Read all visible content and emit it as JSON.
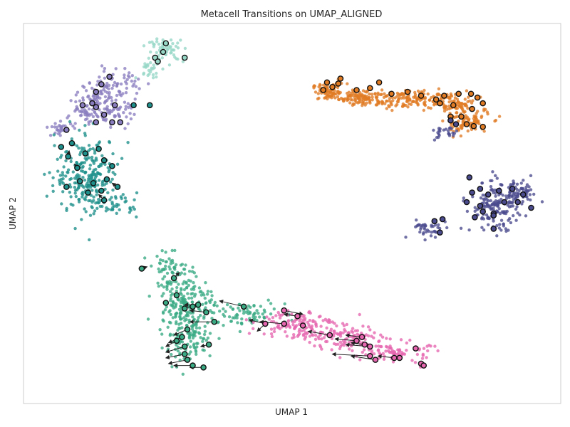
{
  "chart_data": {
    "type": "scatter",
    "title": "Metacell Transitions on UMAP_ALIGNED",
    "xlabel": "UMAP 1",
    "ylabel": "UMAP 2",
    "xlim": [
      0,
      100
    ],
    "ylim": [
      0,
      100
    ],
    "grid": false,
    "legend": "none",
    "ticks": "none",
    "series": [
      {
        "color": "#E07B24",
        "cell_clusters": [
          {
            "cx": 57,
            "cy": 82,
            "sx": 1.6,
            "sy": 1.1,
            "n": 90
          },
          {
            "cx": 63.5,
            "cy": 80.5,
            "sx": 2.3,
            "sy": 1.0,
            "n": 110
          },
          {
            "cx": 71.5,
            "cy": 80,
            "sx": 2.8,
            "sy": 1.2,
            "n": 120
          },
          {
            "cx": 80,
            "cy": 79,
            "sx": 2.2,
            "sy": 1.4,
            "n": 90
          },
          {
            "cx": 82.5,
            "cy": 74,
            "sx": 2.1,
            "sy": 1.6,
            "n": 90
          }
        ],
        "metacells": [
          [
            56.5,
            84.5
          ],
          [
            59,
            85.5
          ],
          [
            57.5,
            83.3
          ],
          [
            55.8,
            82.5
          ],
          [
            58.6,
            84.2
          ],
          [
            62,
            82.5
          ],
          [
            66.2,
            84.5
          ],
          [
            64.5,
            83
          ],
          [
            68.5,
            81.5
          ],
          [
            71.5,
            82
          ],
          [
            74,
            81
          ],
          [
            76.8,
            80
          ],
          [
            78.3,
            81
          ],
          [
            81,
            81.5
          ],
          [
            77.5,
            79
          ],
          [
            80,
            78.5
          ],
          [
            83.3,
            81.5
          ],
          [
            84.5,
            80.5
          ],
          [
            85.5,
            79
          ],
          [
            83.5,
            77.5
          ],
          [
            79.5,
            75.5
          ],
          [
            81.5,
            75.5
          ],
          [
            82.5,
            73.5
          ],
          [
            83.8,
            73
          ],
          [
            85.5,
            72.8
          ]
        ]
      },
      {
        "color": "#8A7DBF",
        "cell_clusters": [
          {
            "cx": 18,
            "cy": 84,
            "sx": 2.0,
            "sy": 2.2,
            "n": 60
          },
          {
            "cx": 13.5,
            "cy": 80.5,
            "sx": 1.6,
            "sy": 1.8,
            "n": 60
          },
          {
            "cx": 11.5,
            "cy": 76,
            "sx": 1.8,
            "sy": 1.3,
            "n": 50
          },
          {
            "cx": 17,
            "cy": 76.5,
            "sx": 1.8,
            "sy": 1.6,
            "n": 50
          },
          {
            "cx": 7,
            "cy": 72.5,
            "sx": 1.2,
            "sy": 0.8,
            "n": 30
          }
        ],
        "metacells": [
          [
            16,
            86
          ],
          [
            14.5,
            84
          ],
          [
            13.5,
            82
          ],
          [
            12.8,
            79
          ],
          [
            11,
            78.5
          ],
          [
            13.5,
            78
          ],
          [
            17,
            78.5
          ],
          [
            15,
            76
          ],
          [
            13.5,
            74
          ],
          [
            16.5,
            74
          ],
          [
            18,
            74
          ],
          [
            8,
            72
          ]
        ]
      },
      {
        "color": "#96D7C6",
        "cell_clusters": [
          {
            "cx": 26.5,
            "cy": 93,
            "sx": 1.7,
            "sy": 1.5,
            "n": 60
          },
          {
            "cx": 23.5,
            "cy": 88,
            "sx": 1.1,
            "sy": 1.3,
            "n": 25
          }
        ],
        "metacells": [
          [
            26.5,
            94.8
          ],
          [
            24.5,
            91
          ],
          [
            26,
            92.5
          ],
          [
            25,
            90
          ],
          [
            30,
            91
          ]
        ]
      },
      {
        "color": "#1E8F8A",
        "cell_clusters": [
          {
            "cx": 12,
            "cy": 60,
            "sx": 3.0,
            "sy": 5.0,
            "n": 260
          },
          {
            "cx": 17,
            "cy": 52.5,
            "sx": 2.2,
            "sy": 1.4,
            "n": 40
          }
        ],
        "metacells": [
          [
            7,
            67.5
          ],
          [
            9,
            68.5
          ],
          [
            8.3,
            65
          ],
          [
            11.5,
            65.8
          ],
          [
            14,
            67
          ],
          [
            15,
            64
          ],
          [
            10,
            62
          ],
          [
            16.5,
            62.5
          ],
          [
            10.5,
            58.5
          ],
          [
            8,
            57
          ],
          [
            13,
            58
          ],
          [
            15.5,
            59
          ],
          [
            14.5,
            56
          ],
          [
            12,
            55.5
          ],
          [
            17.5,
            57
          ],
          [
            15,
            53.5
          ],
          [
            20.5,
            78.5
          ],
          [
            23.5,
            78.5
          ]
        ]
      },
      {
        "color": "#4A4A8E",
        "cell_clusters": [
          {
            "cx": 88,
            "cy": 52,
            "sx": 2.4,
            "sy": 3.2,
            "n": 170
          },
          {
            "cx": 92.5,
            "cy": 55,
            "sx": 1.6,
            "sy": 1.5,
            "n": 60
          },
          {
            "cx": 75,
            "cy": 46,
            "sx": 1.8,
            "sy": 1.3,
            "n": 40
          },
          {
            "cx": 78.5,
            "cy": 71,
            "sx": 1.2,
            "sy": 0.9,
            "n": 25
          }
        ],
        "metacells": [
          [
            83,
            59.5
          ],
          [
            83.5,
            55.5
          ],
          [
            85,
            56.5
          ],
          [
            86.5,
            55
          ],
          [
            88.5,
            56
          ],
          [
            91,
            56.5
          ],
          [
            93,
            55
          ],
          [
            82.5,
            53
          ],
          [
            85,
            52
          ],
          [
            89.5,
            53
          ],
          [
            92,
            53
          ],
          [
            94.5,
            51.5
          ],
          [
            85.5,
            50.5
          ],
          [
            87.5,
            50
          ],
          [
            87.5,
            49.5
          ],
          [
            84,
            49
          ],
          [
            87.5,
            46
          ],
          [
            78,
            48.5
          ],
          [
            76.5,
            48
          ],
          [
            77.5,
            45
          ],
          [
            79.5,
            74.5
          ],
          [
            80.5,
            73.5
          ]
        ]
      },
      {
        "color": "#3AAA84",
        "cell_clusters": [
          {
            "cx": 27.5,
            "cy": 35,
            "sx": 2.2,
            "sy": 2.2,
            "n": 70
          },
          {
            "cx": 30.5,
            "cy": 27.5,
            "sx": 2.3,
            "sy": 2.8,
            "n": 130
          },
          {
            "cx": 30.5,
            "cy": 18,
            "sx": 2.4,
            "sy": 3.5,
            "n": 150
          },
          {
            "cx": 40,
            "cy": 23.5,
            "sx": 4.5,
            "sy": 1.6,
            "n": 90
          }
        ],
        "metacells": [
          [
            22,
            35.5
          ],
          [
            28,
            33
          ],
          [
            28.5,
            28.5
          ],
          [
            26.5,
            26.5
          ],
          [
            30,
            25
          ],
          [
            31.5,
            25.5
          ],
          [
            32.5,
            26
          ],
          [
            34,
            24
          ],
          [
            35.5,
            21.5
          ],
          [
            30.5,
            19.5
          ],
          [
            29.5,
            17.5
          ],
          [
            28.5,
            16.5
          ],
          [
            30,
            15
          ],
          [
            34.5,
            15.5
          ],
          [
            30,
            13
          ],
          [
            30.5,
            11.5
          ],
          [
            31.5,
            10
          ],
          [
            33.5,
            9.5
          ],
          [
            41,
            25.5
          ]
        ]
      },
      {
        "color": "#E667AF",
        "cell_clusters": [
          {
            "cx": 51,
            "cy": 21,
            "sx": 3.5,
            "sy": 2.0,
            "n": 130
          },
          {
            "cx": 60,
            "cy": 17,
            "sx": 3.2,
            "sy": 1.8,
            "n": 110
          },
          {
            "cx": 69.5,
            "cy": 13.5,
            "sx": 3.0,
            "sy": 1.4,
            "n": 90
          }
        ],
        "metacells": [
          [
            45,
            21
          ],
          [
            48.5,
            24.5
          ],
          [
            51,
            23
          ],
          [
            48.5,
            21
          ],
          [
            52,
            20.5
          ],
          [
            57,
            18
          ],
          [
            63,
            17.5
          ],
          [
            62,
            16.5
          ],
          [
            63.5,
            15.5
          ],
          [
            64.5,
            15
          ],
          [
            64.5,
            12.5
          ],
          [
            65.5,
            11.5
          ],
          [
            69,
            12
          ],
          [
            70,
            12
          ],
          [
            73,
            14.5
          ],
          [
            74,
            10.5
          ],
          [
            74.5,
            10
          ]
        ]
      }
    ],
    "transitions": [
      {
        "from": [
          41,
          25.5
        ],
        "to": [
          36.5,
          27
        ]
      },
      {
        "from": [
          48.5,
          24.5
        ],
        "to": [
          52,
          23.5
        ]
      },
      {
        "from": [
          51,
          23
        ],
        "to": [
          48.5,
          23.5
        ]
      },
      {
        "from": [
          48.5,
          21
        ],
        "to": [
          44,
          21.5
        ]
      },
      {
        "from": [
          45,
          21
        ],
        "to": [
          42,
          22
        ]
      },
      {
        "from": [
          57,
          18
        ],
        "to": [
          53,
          19
        ]
      },
      {
        "from": [
          63,
          17.5
        ],
        "to": [
          60,
          18
        ]
      },
      {
        "from": [
          62,
          16.5
        ],
        "to": [
          58,
          17
        ]
      },
      {
        "from": [
          64.5,
          15
        ],
        "to": [
          60,
          15.5
        ]
      },
      {
        "from": [
          65.5,
          11.5
        ],
        "to": [
          61,
          12.5
        ]
      },
      {
        "from": [
          64.5,
          12.5
        ],
        "to": [
          57.5,
          13
        ]
      },
      {
        "from": [
          69,
          12
        ],
        "to": [
          66,
          12.5
        ]
      },
      {
        "from": [
          63.5,
          15.5
        ],
        "to": [
          61,
          16
        ]
      },
      {
        "from": [
          45,
          21
        ],
        "to": [
          43.5,
          19
        ]
      },
      {
        "from": [
          35.5,
          21.5
        ],
        "to": [
          31,
          21.5
        ]
      },
      {
        "from": [
          34,
          24
        ],
        "to": [
          31,
          24.5
        ]
      },
      {
        "from": [
          32.5,
          26
        ],
        "to": [
          30,
          26
        ]
      },
      {
        "from": [
          30.5,
          19.5
        ],
        "to": [
          28,
          18
        ]
      },
      {
        "from": [
          29.5,
          17.5
        ],
        "to": [
          27,
          16
        ]
      },
      {
        "from": [
          28.5,
          16.5
        ],
        "to": [
          26.5,
          15
        ]
      },
      {
        "from": [
          30,
          15
        ],
        "to": [
          26.5,
          13.5
        ]
      },
      {
        "from": [
          30,
          13
        ],
        "to": [
          26.5,
          12
        ]
      },
      {
        "from": [
          30.5,
          11.5
        ],
        "to": [
          27,
          10.5
        ]
      },
      {
        "from": [
          31.5,
          10
        ],
        "to": [
          28,
          10
        ]
      },
      {
        "from": [
          33.5,
          9.5
        ],
        "to": [
          31,
          9.5
        ]
      },
      {
        "from": [
          34.5,
          15.5
        ],
        "to": [
          33,
          15
        ]
      },
      {
        "from": [
          30,
          25
        ],
        "to": [
          32,
          26
        ]
      },
      {
        "from": [
          28,
          33
        ],
        "to": [
          29,
          34.5
        ]
      },
      {
        "from": [
          22,
          35.5
        ],
        "to": [
          23,
          36
        ]
      },
      {
        "from": [
          17.5,
          57
        ],
        "to": [
          16.5,
          58
        ]
      },
      {
        "from": [
          15,
          53.5
        ],
        "to": [
          14,
          55
        ]
      },
      {
        "from": [
          8.3,
          65
        ],
        "to": [
          8.5,
          66.5
        ]
      },
      {
        "from": [
          10,
          62
        ],
        "to": [
          9.5,
          63
        ]
      }
    ]
  }
}
